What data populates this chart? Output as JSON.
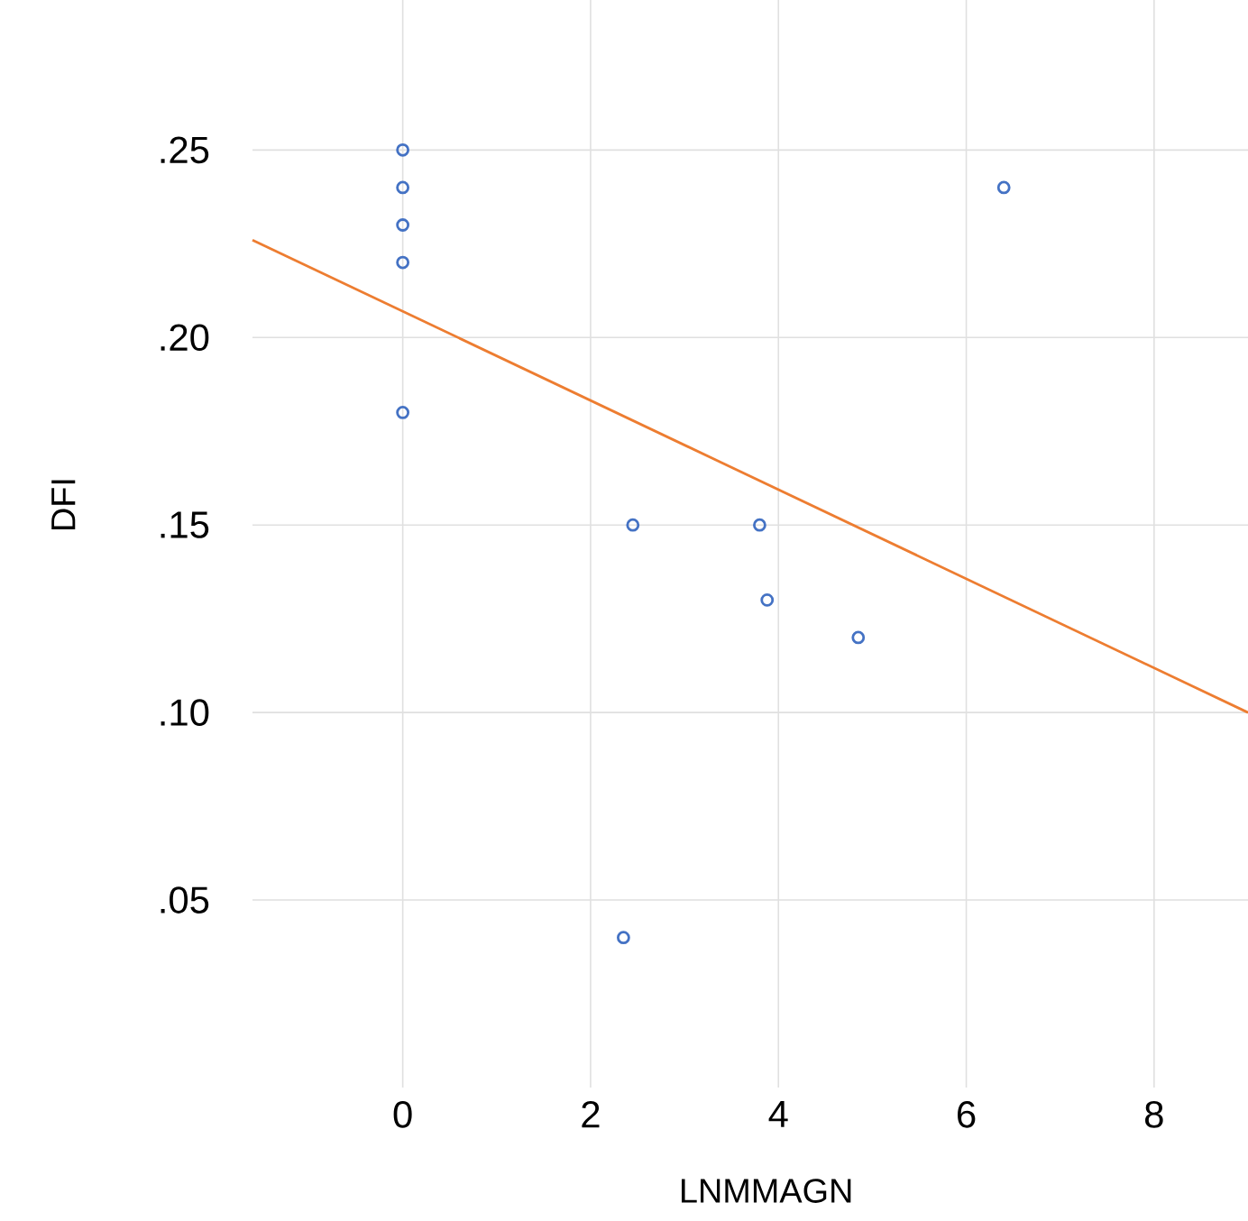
{
  "chart_data": {
    "type": "scatter",
    "xlabel": "LNMMAGN",
    "ylabel": "DFI",
    "xlim": [
      -1.6,
      9
    ],
    "ylim": [
      0,
      0.29
    ],
    "xticks": [
      0,
      2,
      4,
      6,
      8
    ],
    "yticks": [
      {
        "value": 0.05,
        "label": ".05"
      },
      {
        "value": 0.1,
        "label": ".10"
      },
      {
        "value": 0.15,
        "label": ".15"
      },
      {
        "value": 0.2,
        "label": ".20"
      },
      {
        "value": 0.25,
        "label": ".25"
      }
    ],
    "grid": true,
    "series": [
      {
        "type": "scatter",
        "color": "#4472c4",
        "marker": "circle",
        "x": [
          0,
          0,
          0,
          0,
          0,
          2.45,
          3.8,
          3.88,
          4.85,
          6.4,
          2.35
        ],
        "values": [
          0.25,
          0.24,
          0.23,
          0.22,
          0.18,
          0.15,
          0.15,
          0.13,
          0.12,
          0.24,
          0.04
        ]
      },
      {
        "type": "line",
        "color": "#ed7d31",
        "marker": "none",
        "line_style": "solid",
        "x": [
          -1.6,
          9
        ],
        "values": [
          0.226,
          0.1
        ]
      }
    ]
  }
}
